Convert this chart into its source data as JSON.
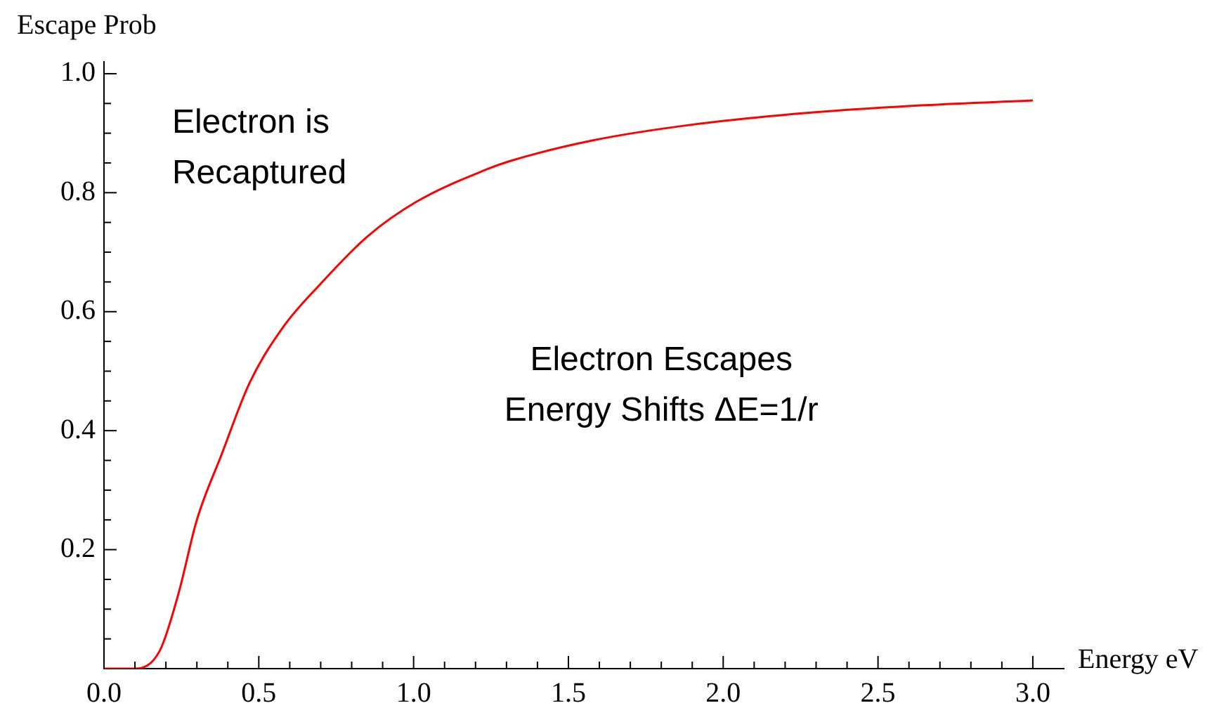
{
  "chart_data": {
    "type": "line",
    "xlabel": "Energy eV",
    "ylabel": "Escape Prob",
    "x": [
      0,
      0.1,
      0.18,
      0.24,
      0.3,
      0.38,
      0.47,
      0.58,
      0.7,
      0.85,
      1.01,
      1.24,
      1.31,
      1.58,
      1.88,
      2.27,
      2.65,
      3.0
    ],
    "series": [
      {
        "color": "#ff0000",
        "values": [
          0,
          0,
          0.03,
          0.125,
          0.25,
          0.36,
          0.48,
          0.575,
          0.647,
          0.726,
          0.785,
          0.84,
          0.853,
          0.888,
          0.913,
          0.934,
          0.947,
          0.955
        ]
      }
    ],
    "xlim": [
      0,
      3.1
    ],
    "ylim": [
      0,
      1.02
    ],
    "xticks": [
      {
        "value": 0,
        "label": "0.0"
      },
      {
        "value": 0.1,
        "label": null
      },
      {
        "value": 0.2,
        "label": null
      },
      {
        "value": 0.3,
        "label": null
      },
      {
        "value": 0.4,
        "label": null
      },
      0.5,
      {
        "value": 0.6,
        "label": null
      },
      {
        "value": 0.7,
        "label": null
      },
      {
        "value": 0.8,
        "label": null
      },
      {
        "value": 0.9,
        "label": null
      },
      {
        "value": 1,
        "label": "1.0"
      },
      {
        "value": 1.1,
        "label": null
      },
      {
        "value": 1.2,
        "label": null
      },
      {
        "value": 1.3,
        "label": null
      },
      {
        "value": 1.4,
        "label": null
      },
      1.5,
      {
        "value": 1.6,
        "label": null
      },
      {
        "value": 1.7,
        "label": null
      },
      {
        "value": 1.8,
        "label": null
      },
      {
        "value": 1.9,
        "label": null
      },
      {
        "value": 2,
        "label": "2.0"
      },
      {
        "value": 2.1,
        "label": null
      },
      {
        "value": 2.2,
        "label": null
      },
      {
        "value": 2.3,
        "label": null
      },
      {
        "value": 2.4,
        "label": null
      },
      2.5,
      {
        "value": 2.6,
        "label": null
      },
      {
        "value": 2.7,
        "label": null
      },
      {
        "value": 2.8,
        "label": null
      },
      {
        "value": 2.9,
        "label": null
      },
      {
        "value": 3,
        "label": "3.0"
      }
    ],
    "yticks": [
      {
        "value": 0.05,
        "label": null
      },
      {
        "value": 0.1,
        "label": null
      },
      {
        "value": 0.15,
        "label": null
      },
      0.2,
      {
        "value": 0.25,
        "label": null
      },
      {
        "value": 0.3,
        "label": null
      },
      {
        "value": 0.35,
        "label": null
      },
      0.4,
      {
        "value": 0.45,
        "label": null
      },
      {
        "value": 0.5,
        "label": null
      },
      {
        "value": 0.55,
        "label": null
      },
      0.6,
      {
        "value": 0.65,
        "label": null
      },
      {
        "value": 0.7,
        "label": null
      },
      {
        "value": 0.75,
        "label": null
      },
      0.8,
      {
        "value": 0.85,
        "label": null
      },
      {
        "value": 0.9,
        "label": null
      },
      {
        "value": 0.95,
        "label": null
      },
      {
        "value": 1,
        "label": "1.0"
      }
    ],
    "annotations": [
      "Electron is\nRecaptured",
      "Electron Escapes\nEnergy Shifts ΔE=1/r"
    ],
    "grid": false,
    "legend": false,
    "marker": "none",
    "line_style": "solid"
  }
}
